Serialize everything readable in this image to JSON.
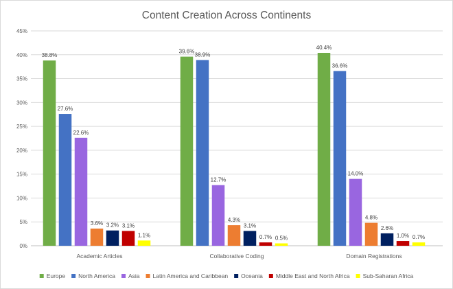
{
  "chart_data": {
    "type": "bar",
    "title": "Content Creation Across Continents",
    "categories": [
      "Academic Articles",
      "Collaborative Coding",
      "Domain Registrations"
    ],
    "series": [
      {
        "name": "Europe",
        "color": "#70ad47",
        "values": [
          38.8,
          39.6,
          40.4
        ]
      },
      {
        "name": "North America",
        "color": "#4472c4",
        "values": [
          27.6,
          38.9,
          36.6
        ]
      },
      {
        "name": "Asia",
        "color": "#9966e0",
        "values": [
          22.6,
          12.7,
          14.0
        ]
      },
      {
        "name": "Latin America and Caribbean",
        "color": "#ed7d31",
        "values": [
          3.6,
          4.3,
          4.8
        ]
      },
      {
        "name": "Oceania",
        "color": "#002060",
        "values": [
          3.2,
          3.1,
          2.6
        ]
      },
      {
        "name": "Middle East and North Africa",
        "color": "#c00000",
        "values": [
          3.1,
          0.7,
          1.0
        ]
      },
      {
        "name": "Sub-Saharan Africa",
        "color": "#ffff00",
        "values": [
          1.1,
          0.5,
          0.7
        ]
      }
    ],
    "ylim": [
      0,
      45
    ],
    "yticks": [
      "0%",
      "5%",
      "10%",
      "15%",
      "20%",
      "25%",
      "30%",
      "35%",
      "40%",
      "45%"
    ],
    "value_suffix": "%",
    "grid": true,
    "legend_position": "bottom",
    "xlabel": "",
    "ylabel": ""
  }
}
